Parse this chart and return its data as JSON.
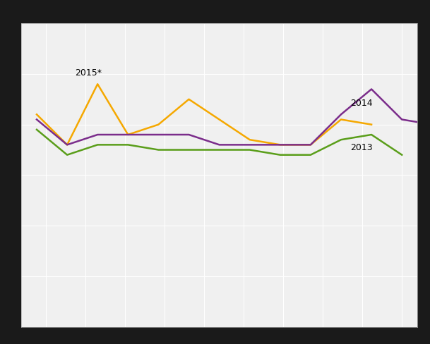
{
  "y_2013": [
    59,
    54,
    56,
    56,
    55,
    55,
    55,
    55,
    54,
    54,
    57,
    58,
    54
  ],
  "y_2014": [
    61,
    56,
    58,
    58,
    58,
    58,
    56,
    56,
    56,
    56,
    62,
    67,
    61,
    60
  ],
  "y_2015": [
    62,
    56,
    68,
    58,
    60,
    65,
    61,
    57,
    56,
    56,
    61,
    60
  ],
  "x_2013": [
    1,
    2,
    3,
    4,
    5,
    6,
    7,
    8,
    9,
    10,
    11,
    12,
    13
  ],
  "x_2014": [
    1,
    2,
    3,
    4,
    5,
    6,
    7,
    8,
    9,
    10,
    11,
    12,
    13,
    14
  ],
  "x_2015": [
    1,
    2,
    3,
    4,
    5,
    6,
    7,
    8,
    9,
    10,
    11,
    12
  ],
  "color_2013": "#5a9e1a",
  "color_2014": "#7b2d8b",
  "color_2015": "#f5a800",
  "label_2015": "2015*",
  "label_2014": "2014",
  "label_2013": "2013",
  "plot_bg_color": "#f0f0f0",
  "outer_bg_color": "#1a1a1a",
  "grid_color": "#ffffff",
  "ylim_min": 20,
  "ylim_max": 80,
  "xlim_min": 0.5,
  "xlim_max": 13.5,
  "linewidth": 1.8,
  "annotation_fontsize": 9,
  "ann_2015_xi": 2,
  "ann_2014_xi": 10,
  "ann_2013_xi": 10,
  "grid_nx": 10,
  "grid_ny": 8
}
